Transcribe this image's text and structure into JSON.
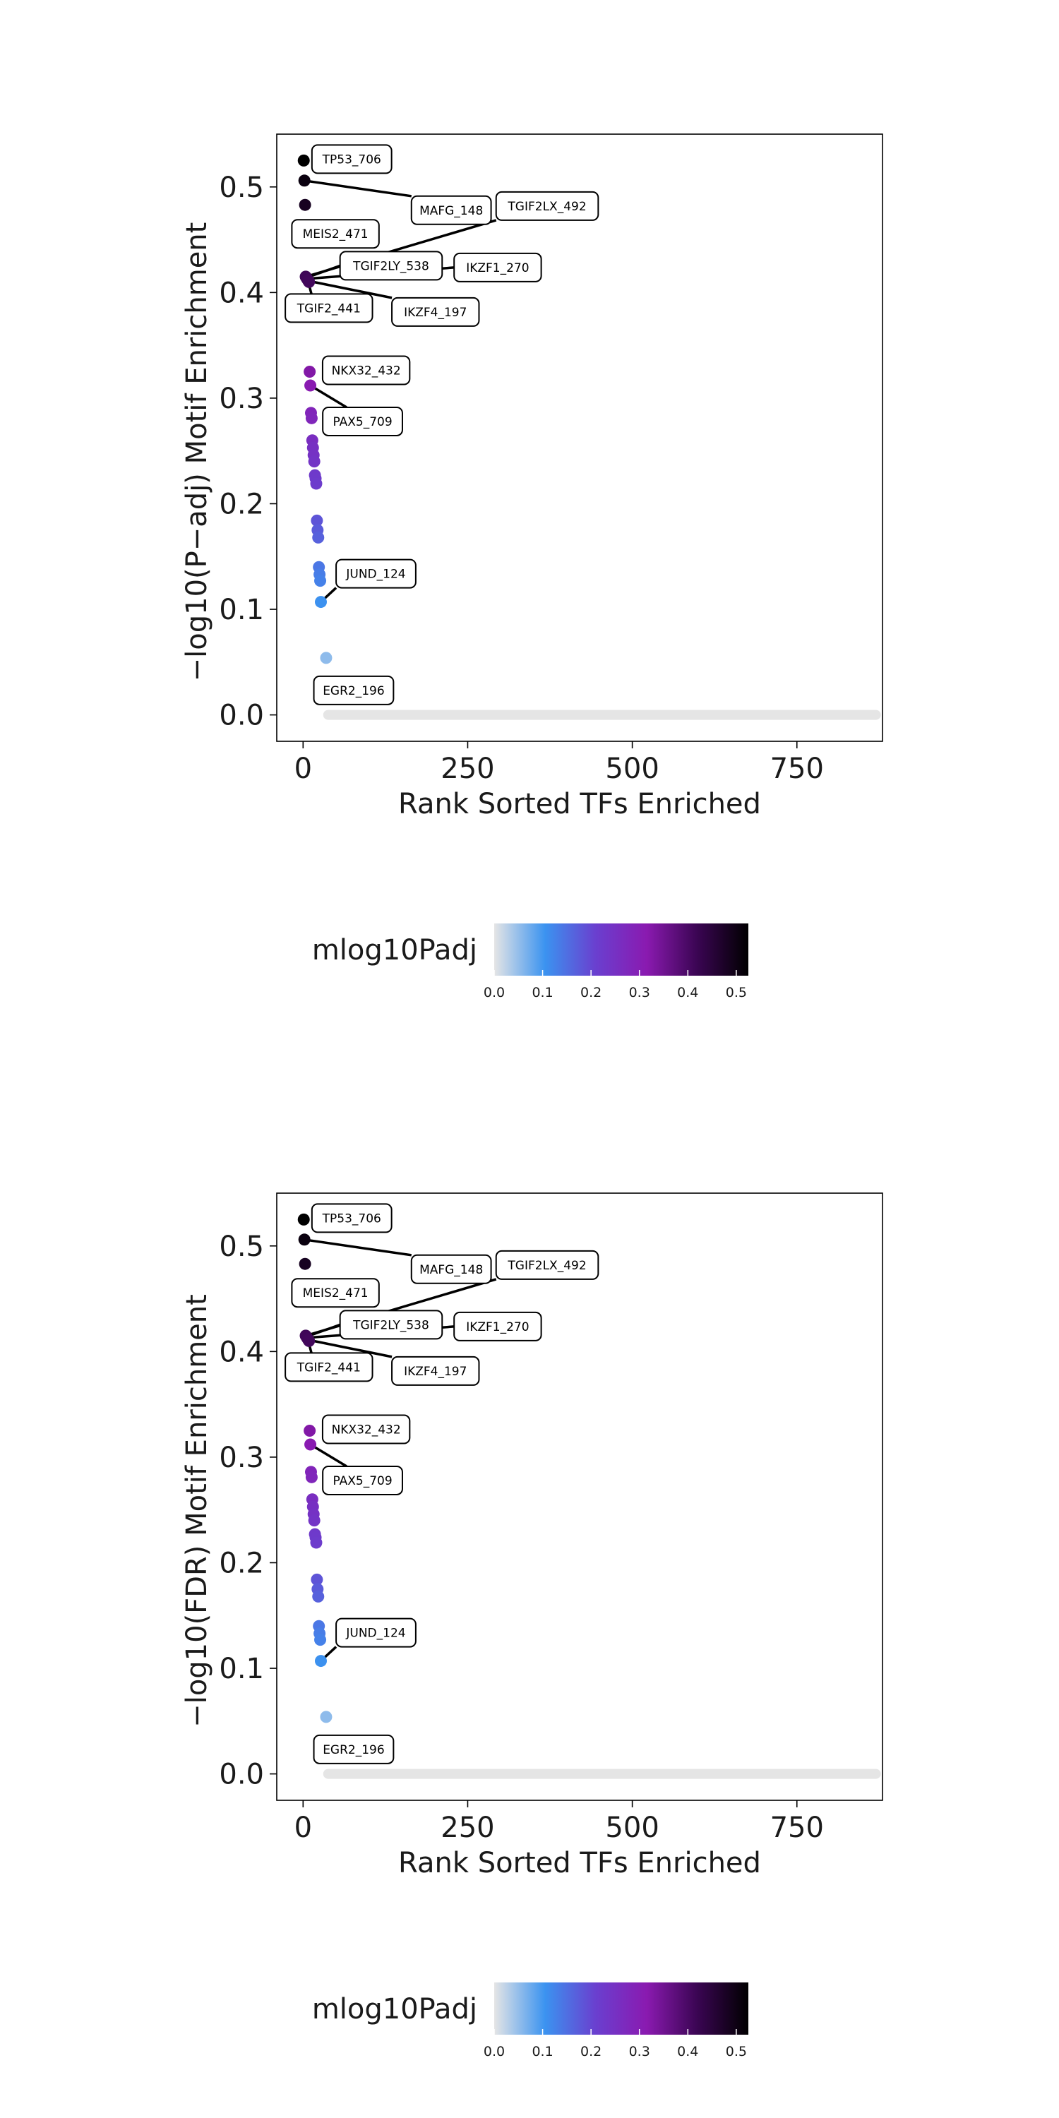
{
  "chart_data": [
    {
      "type": "scatter",
      "title": "",
      "xlabel": "Rank Sorted TFs Enriched",
      "ylabel": "−log10(P−adj) Motif Enrichment",
      "xlim": [
        -40,
        880
      ],
      "ylim": [
        -0.025,
        0.55
      ],
      "xticks": [
        0,
        250,
        500,
        750
      ],
      "yticks": [
        0.0,
        0.1,
        0.2,
        0.3,
        0.4,
        0.5
      ],
      "ytick_labels": [
        "0.0",
        "0.1",
        "0.2",
        "0.3",
        "0.4",
        "0.5"
      ],
      "grid": false,
      "colorbar": {
        "title": "mlog10Padj",
        "range": [
          0,
          0.525
        ],
        "ticks": [
          "0.0",
          "0.1",
          "0.2",
          "0.3",
          "0.4",
          "0.5"
        ],
        "colors": [
          "#e5e5e5",
          "#3b93f0",
          "#6a3fcf",
          "#8a1ab0",
          "#3a0552",
          "#000000"
        ]
      },
      "points": [
        {
          "x": 1,
          "y": 0.525
        },
        {
          "x": 2,
          "y": 0.506
        },
        {
          "x": 3,
          "y": 0.483
        },
        {
          "x": 4,
          "y": 0.415
        },
        {
          "x": 5,
          "y": 0.414
        },
        {
          "x": 6,
          "y": 0.413
        },
        {
          "x": 7,
          "y": 0.412
        },
        {
          "x": 8,
          "y": 0.411
        },
        {
          "x": 9,
          "y": 0.41
        },
        {
          "x": 10,
          "y": 0.325
        },
        {
          "x": 11,
          "y": 0.312
        },
        {
          "x": 12,
          "y": 0.286
        },
        {
          "x": 13,
          "y": 0.281
        },
        {
          "x": 14,
          "y": 0.26
        },
        {
          "x": 15,
          "y": 0.253
        },
        {
          "x": 16,
          "y": 0.246
        },
        {
          "x": 17,
          "y": 0.24
        },
        {
          "x": 18,
          "y": 0.227
        },
        {
          "x": 19,
          "y": 0.224
        },
        {
          "x": 20,
          "y": 0.219
        },
        {
          "x": 21,
          "y": 0.184
        },
        {
          "x": 22,
          "y": 0.175
        },
        {
          "x": 23,
          "y": 0.168
        },
        {
          "x": 24,
          "y": 0.14
        },
        {
          "x": 25,
          "y": 0.133
        },
        {
          "x": 26,
          "y": 0.127
        },
        {
          "x": 27,
          "y": 0.107
        },
        {
          "x": 35,
          "y": 0.054
        },
        {
          "x": 37,
          "y": 0.031
        }
      ],
      "zero_band": {
        "x_from": 38,
        "x_to": 870,
        "y": 0.0
      },
      "annotations": [
        {
          "text": "TP53_706",
          "x": 1,
          "y": 0.525
        },
        {
          "text": "MAFG_148",
          "x": 2,
          "y": 0.506
        },
        {
          "text": "MEIS2_471",
          "x": 3,
          "y": 0.483
        },
        {
          "text": "TGIF2LX_492",
          "x": 4,
          "y": 0.415
        },
        {
          "text": "TGIF2LY_538",
          "x": 5,
          "y": 0.414
        },
        {
          "text": "IKZF1_270",
          "x": 6,
          "y": 0.413
        },
        {
          "text": "TGIF2_441",
          "x": 7,
          "y": 0.412
        },
        {
          "text": "IKZF4_197",
          "x": 8,
          "y": 0.411
        },
        {
          "text": "NKX32_432",
          "x": 10,
          "y": 0.325
        },
        {
          "text": "PAX5_709",
          "x": 11,
          "y": 0.312
        },
        {
          "text": "JUND_124",
          "x": 27,
          "y": 0.107
        },
        {
          "text": "EGR2_196",
          "x": 35,
          "y": 0.054
        }
      ]
    },
    {
      "type": "scatter",
      "title": "",
      "xlabel": "Rank Sorted TFs Enriched",
      "ylabel": "−log10(FDR) Motif Enrichment",
      "xlim": [
        -40,
        880
      ],
      "ylim": [
        -0.025,
        0.55
      ],
      "xticks": [
        0,
        250,
        500,
        750
      ],
      "yticks": [
        0.0,
        0.1,
        0.2,
        0.3,
        0.4,
        0.5
      ],
      "ytick_labels": [
        "0.0",
        "0.1",
        "0.2",
        "0.3",
        "0.4",
        "0.5"
      ],
      "grid": false,
      "colorbar": {
        "title": "mlog10Padj",
        "range": [
          0,
          0.525
        ],
        "ticks": [
          "0.0",
          "0.1",
          "0.2",
          "0.3",
          "0.4",
          "0.5"
        ],
        "colors": [
          "#e5e5e5",
          "#3b93f0",
          "#6a3fcf",
          "#8a1ab0",
          "#3a0552",
          "#000000"
        ]
      },
      "points": [
        {
          "x": 1,
          "y": 0.525
        },
        {
          "x": 2,
          "y": 0.506
        },
        {
          "x": 3,
          "y": 0.483
        },
        {
          "x": 4,
          "y": 0.415
        },
        {
          "x": 5,
          "y": 0.414
        },
        {
          "x": 6,
          "y": 0.413
        },
        {
          "x": 7,
          "y": 0.412
        },
        {
          "x": 8,
          "y": 0.411
        },
        {
          "x": 9,
          "y": 0.41
        },
        {
          "x": 10,
          "y": 0.325
        },
        {
          "x": 11,
          "y": 0.312
        },
        {
          "x": 12,
          "y": 0.286
        },
        {
          "x": 13,
          "y": 0.281
        },
        {
          "x": 14,
          "y": 0.26
        },
        {
          "x": 15,
          "y": 0.253
        },
        {
          "x": 16,
          "y": 0.246
        },
        {
          "x": 17,
          "y": 0.24
        },
        {
          "x": 18,
          "y": 0.227
        },
        {
          "x": 19,
          "y": 0.224
        },
        {
          "x": 20,
          "y": 0.219
        },
        {
          "x": 21,
          "y": 0.184
        },
        {
          "x": 22,
          "y": 0.175
        },
        {
          "x": 23,
          "y": 0.168
        },
        {
          "x": 24,
          "y": 0.14
        },
        {
          "x": 25,
          "y": 0.133
        },
        {
          "x": 26,
          "y": 0.127
        },
        {
          "x": 27,
          "y": 0.107
        },
        {
          "x": 35,
          "y": 0.054
        },
        {
          "x": 37,
          "y": 0.031
        }
      ],
      "zero_band": {
        "x_from": 38,
        "x_to": 870,
        "y": 0.0
      },
      "annotations": [
        {
          "text": "TP53_706",
          "x": 1,
          "y": 0.525
        },
        {
          "text": "MAFG_148",
          "x": 2,
          "y": 0.506
        },
        {
          "text": "MEIS2_471",
          "x": 3,
          "y": 0.483
        },
        {
          "text": "TGIF2LX_492",
          "x": 4,
          "y": 0.415
        },
        {
          "text": "TGIF2LY_538",
          "x": 5,
          "y": 0.414
        },
        {
          "text": "IKZF1_270",
          "x": 6,
          "y": 0.413
        },
        {
          "text": "TGIF2_441",
          "x": 7,
          "y": 0.412
        },
        {
          "text": "IKZF4_197",
          "x": 8,
          "y": 0.411
        },
        {
          "text": "NKX32_432",
          "x": 10,
          "y": 0.325
        },
        {
          "text": "PAX5_709",
          "x": 11,
          "y": 0.312
        },
        {
          "text": "JUND_124",
          "x": 27,
          "y": 0.107
        },
        {
          "text": "EGR2_196",
          "x": 35,
          "y": 0.054
        }
      ]
    }
  ]
}
